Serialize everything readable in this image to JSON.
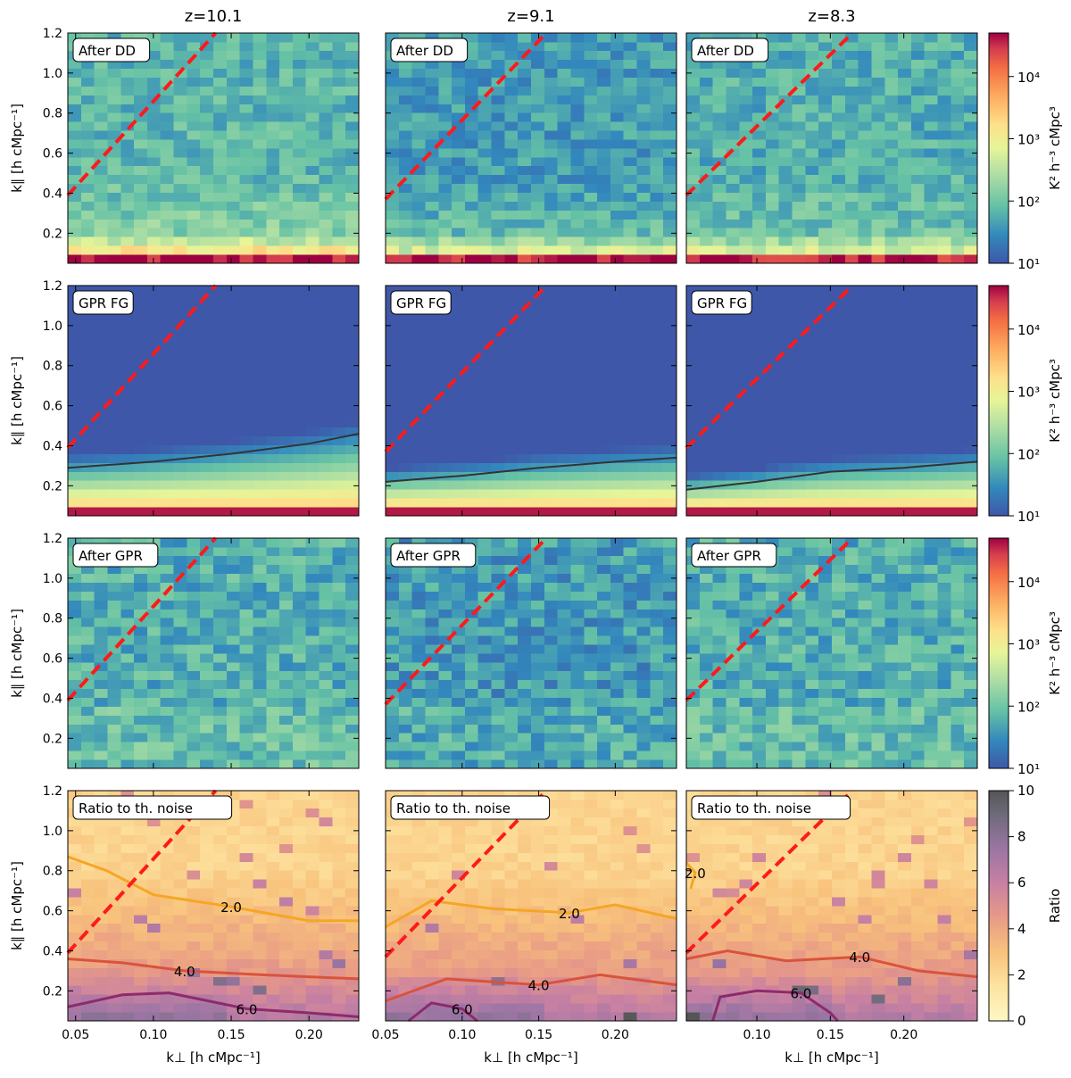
{
  "column_titles": [
    "z=10.1",
    "z=9.1",
    "z=8.3"
  ],
  "row_labels": [
    "After DD",
    "GPR FG",
    "After GPR",
    "Ratio to th. noise"
  ],
  "x_axis": {
    "label": "k⊥ [h cMpc⁻¹]",
    "ticks": [
      "0.05",
      "0.10",
      "0.15",
      "0.20"
    ],
    "tick_values": [
      0.05,
      0.1,
      0.15,
      0.2
    ]
  },
  "y_axis": {
    "label": "k∥ [h cMpc⁻¹]",
    "ticks": [
      "0.2",
      "0.4",
      "0.6",
      "0.8",
      "1.0",
      "1.2"
    ],
    "tick_values": [
      0.2,
      0.4,
      0.6,
      0.8,
      1.0,
      1.2
    ]
  },
  "colorbars": {
    "power": {
      "label": "K² h⁻³ cMpc³",
      "scale": "log",
      "ticks": [
        "10¹",
        "10²",
        "10³",
        "10⁴"
      ],
      "range": [
        10,
        50000
      ],
      "colormap": "Spectral_r"
    },
    "ratio": {
      "label": "Ratio",
      "scale": "linear",
      "ticks": [
        "0",
        "2",
        "4",
        "6",
        "8",
        "10"
      ],
      "range": [
        0,
        10
      ],
      "colormap": "magma-like (light yellow to dark grey)"
    }
  },
  "contour_labels": [
    "2.0",
    "4.0",
    "6.0"
  ],
  "colors": {
    "horizon_line": "#ff1a1a",
    "contour_2": "#f5a623",
    "contour_4": "#d9533b",
    "contour_6": "#8e2a6c",
    "gpr_line": "#333333"
  },
  "chart_data": [
    {
      "type": "heatmap",
      "row": "After DD",
      "panels": [
        {
          "title": "z=10.1",
          "xlim": [
            0.045,
            0.232
          ],
          "ylim": [
            0.05,
            1.2
          ],
          "horizon_line": [
            [
              0.045,
              0.39
            ],
            [
              0.14,
              1.2
            ]
          ],
          "typical_power": {
            "k_par_0.07": 40000,
            "k_par_0.15": 800,
            "k_par_0.3": 150,
            "k_par_0.6_plus": 70
          }
        },
        {
          "title": "z=9.1",
          "xlim": [
            0.05,
            0.24
          ],
          "ylim": [
            0.05,
            1.2
          ],
          "horizon_line": [
            [
              0.05,
              0.37
            ],
            [
              0.155,
              1.2
            ]
          ],
          "typical_power": {
            "k_par_0.07": 40000,
            "k_par_0.15": 300,
            "k_par_0.3": 80,
            "k_par_0.6_plus": 40
          }
        },
        {
          "title": "z=8.3",
          "xlim": [
            0.052,
            0.25
          ],
          "ylim": [
            0.05,
            1.2
          ],
          "horizon_line": [
            [
              0.052,
              0.39
            ],
            [
              0.165,
              1.2
            ]
          ],
          "typical_power": {
            "k_par_0.07": 40000,
            "k_par_0.15": 300,
            "k_par_0.3": 100,
            "k_par_0.6_plus": 60
          }
        }
      ]
    },
    {
      "type": "heatmap",
      "row": "GPR FG",
      "panels": [
        {
          "title": "z=10.1",
          "xlim": [
            0.045,
            0.232
          ],
          "ylim": [
            0.05,
            1.2
          ],
          "horizon_line": [
            [
              0.045,
              0.39
            ],
            [
              0.14,
              1.2
            ]
          ],
          "fg_boundary": [
            [
              0.045,
              0.29
            ],
            [
              0.1,
              0.32
            ],
            [
              0.15,
              0.36
            ],
            [
              0.2,
              0.41
            ],
            [
              0.232,
              0.46
            ]
          ]
        },
        {
          "title": "z=9.1",
          "xlim": [
            0.05,
            0.24
          ],
          "ylim": [
            0.05,
            1.2
          ],
          "horizon_line": [
            [
              0.05,
              0.37
            ],
            [
              0.155,
              1.2
            ]
          ],
          "fg_boundary": [
            [
              0.05,
              0.22
            ],
            [
              0.1,
              0.25
            ],
            [
              0.15,
              0.29
            ],
            [
              0.2,
              0.32
            ],
            [
              0.24,
              0.34
            ]
          ]
        },
        {
          "title": "z=8.3",
          "xlim": [
            0.052,
            0.25
          ],
          "ylim": [
            0.05,
            1.2
          ],
          "horizon_line": [
            [
              0.052,
              0.39
            ],
            [
              0.165,
              1.2
            ]
          ],
          "fg_boundary": [
            [
              0.052,
              0.18
            ],
            [
              0.1,
              0.22
            ],
            [
              0.15,
              0.27
            ],
            [
              0.2,
              0.29
            ],
            [
              0.25,
              0.32
            ]
          ]
        }
      ]
    },
    {
      "type": "heatmap",
      "row": "After GPR",
      "panels": [
        {
          "title": "z=10.1",
          "xlim": [
            0.045,
            0.232
          ],
          "ylim": [
            0.05,
            1.2
          ],
          "horizon_line": [
            [
              0.045,
              0.39
            ],
            [
              0.14,
              1.2
            ]
          ],
          "typical_power": 60
        },
        {
          "title": "z=9.1",
          "xlim": [
            0.05,
            0.24
          ],
          "ylim": [
            0.05,
            1.2
          ],
          "horizon_line": [
            [
              0.05,
              0.37
            ],
            [
              0.155,
              1.2
            ]
          ],
          "typical_power": 40
        },
        {
          "title": "z=8.3",
          "xlim": [
            0.052,
            0.25
          ],
          "ylim": [
            0.05,
            1.2
          ],
          "horizon_line": [
            [
              0.052,
              0.39
            ],
            [
              0.165,
              1.2
            ]
          ],
          "typical_power": 60
        }
      ]
    },
    {
      "type": "heatmap",
      "row": "Ratio to th. noise",
      "panels": [
        {
          "title": "z=10.1",
          "xlim": [
            0.045,
            0.232
          ],
          "ylim": [
            0.05,
            1.2
          ],
          "horizon_line": [
            [
              0.045,
              0.39
            ],
            [
              0.14,
              1.2
            ]
          ],
          "contours": [
            {
              "level": 2.0,
              "points": [
                [
                  0.045,
                  0.87
                ],
                [
                  0.07,
                  0.8
                ],
                [
                  0.1,
                  0.68
                ],
                [
                  0.15,
                  0.62
                ],
                [
                  0.2,
                  0.55
                ],
                [
                  0.232,
                  0.55
                ]
              ]
            },
            {
              "level": 4.0,
              "points": [
                [
                  0.045,
                  0.36
                ],
                [
                  0.08,
                  0.34
                ],
                [
                  0.12,
                  0.3
                ],
                [
                  0.17,
                  0.28
                ],
                [
                  0.232,
                  0.26
                ]
              ]
            },
            {
              "level": 6.0,
              "points": [
                [
                  0.045,
                  0.12
                ],
                [
                  0.08,
                  0.18
                ],
                [
                  0.11,
                  0.19
                ],
                [
                  0.16,
                  0.11
                ],
                [
                  0.2,
                  0.09
                ],
                [
                  0.232,
                  0.07
                ]
              ]
            }
          ]
        },
        {
          "title": "z=9.1",
          "xlim": [
            0.05,
            0.24
          ],
          "ylim": [
            0.05,
            1.2
          ],
          "horizon_line": [
            [
              0.05,
              0.37
            ],
            [
              0.155,
              1.2
            ]
          ],
          "contours": [
            {
              "level": 2.0,
              "points": [
                [
                  0.05,
                  0.52
                ],
                [
                  0.08,
                  0.65
                ],
                [
                  0.12,
                  0.61
                ],
                [
                  0.17,
                  0.59
                ],
                [
                  0.2,
                  0.63
                ],
                [
                  0.24,
                  0.56
                ]
              ]
            },
            {
              "level": 4.0,
              "points": [
                [
                  0.05,
                  0.15
                ],
                [
                  0.09,
                  0.26
                ],
                [
                  0.15,
                  0.23
                ],
                [
                  0.19,
                  0.28
                ],
                [
                  0.24,
                  0.23
                ]
              ]
            },
            {
              "level": 6.0,
              "points": [
                [
                  0.065,
                  0.05
                ],
                [
                  0.08,
                  0.14
                ],
                [
                  0.1,
                  0.11
                ],
                [
                  0.11,
                  0.05
                ]
              ]
            }
          ]
        },
        {
          "title": "z=8.3",
          "xlim": [
            0.052,
            0.25
          ],
          "ylim": [
            0.05,
            1.2
          ],
          "horizon_line": [
            [
              0.052,
              0.39
            ],
            [
              0.165,
              1.2
            ]
          ],
          "contours": [
            {
              "level": 2.0,
              "points": [
                [
                  0.052,
                  0.84
                ],
                [
                  0.058,
                  0.79
                ],
                [
                  0.055,
                  0.71
                ]
              ]
            },
            {
              "level": 4.0,
              "points": [
                [
                  0.052,
                  0.36
                ],
                [
                  0.08,
                  0.4
                ],
                [
                  0.12,
                  0.35
                ],
                [
                  0.17,
                  0.37
                ],
                [
                  0.21,
                  0.3
                ],
                [
                  0.25,
                  0.27
                ]
              ]
            },
            {
              "level": 6.0,
              "points": [
                [
                  0.07,
                  0.05
                ],
                [
                  0.075,
                  0.17
                ],
                [
                  0.1,
                  0.2
                ],
                [
                  0.13,
                  0.19
                ],
                [
                  0.15,
                  0.09
                ],
                [
                  0.155,
                  0.05
                ]
              ]
            }
          ]
        }
      ]
    }
  ]
}
